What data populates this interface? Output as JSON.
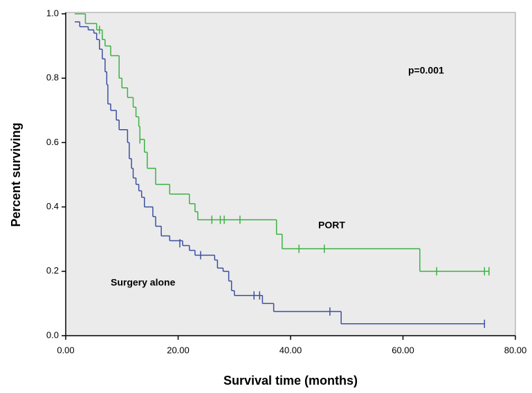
{
  "chart_data": {
    "type": "step",
    "x_label": "Survival time (months)",
    "y_label": "Percent surviving",
    "xlim": [
      0,
      80
    ],
    "ylim": [
      0,
      1
    ],
    "xticks": [
      {
        "value": 0,
        "label": "0.00"
      },
      {
        "value": 20,
        "label": "20.00"
      },
      {
        "value": 40,
        "label": "40.00"
      },
      {
        "value": 60,
        "label": "60.00"
      },
      {
        "value": 80,
        "label": "80.00"
      }
    ],
    "yticks": [
      {
        "value": 0,
        "label": "0.0"
      },
      {
        "value": 0.2,
        "label": "0.2"
      },
      {
        "value": 0.4,
        "label": "0.4"
      },
      {
        "value": 0.6,
        "label": "0.6"
      },
      {
        "value": 0.8,
        "label": "0.8"
      },
      {
        "value": 1,
        "label": "1.0"
      }
    ],
    "annotations": [
      "p=0.001",
      "PORT",
      "Surgery alone"
    ],
    "series": [
      {
        "name": "PORT",
        "color": "#3cb043",
        "x": [
          1.6,
          3.5,
          5.5,
          6.5,
          7,
          8,
          9.5,
          10,
          11,
          12,
          12.5,
          13,
          13.2,
          14,
          14.5,
          16,
          18.5,
          22,
          23,
          23.5,
          37.5,
          38.5,
          63
        ],
        "values": [
          1,
          0.97,
          0.95,
          0.92,
          0.9,
          0.87,
          0.8,
          0.77,
          0.74,
          0.71,
          0.68,
          0.65,
          0.61,
          0.57,
          0.52,
          0.47,
          0.44,
          0.41,
          0.385,
          0.36,
          0.315,
          0.27,
          0.2
        ],
        "censored_x": [
          6,
          13.2,
          26,
          27.5,
          28.2,
          31,
          41.5,
          46,
          66,
          74.5,
          75.3
        ],
        "censored_y": [
          0.95,
          0.61,
          0.36,
          0.36,
          0.36,
          0.36,
          0.27,
          0.27,
          0.2,
          0.2,
          0.2
        ]
      },
      {
        "name": "Surgery alone",
        "color": "#3a4fa0",
        "x": [
          1.6,
          2.5,
          4,
          5,
          5.5,
          6,
          6.5,
          7,
          7.3,
          7.5,
          8,
          9,
          9.5,
          11,
          11.3,
          11.7,
          12,
          12.5,
          13,
          13.5,
          14,
          15.5,
          16,
          17,
          18.5,
          20.8,
          22,
          23,
          26.5,
          27,
          28,
          29,
          29.5,
          30,
          35,
          37,
          49
        ],
        "values": [
          0.975,
          0.96,
          0.95,
          0.94,
          0.92,
          0.89,
          0.86,
          0.82,
          0.78,
          0.72,
          0.7,
          0.67,
          0.64,
          0.6,
          0.55,
          0.52,
          0.49,
          0.47,
          0.45,
          0.43,
          0.4,
          0.37,
          0.34,
          0.31,
          0.295,
          0.28,
          0.265,
          0.25,
          0.235,
          0.21,
          0.2,
          0.17,
          0.14,
          0.125,
          0.1,
          0.075,
          0.037
        ],
        "censored_x": [
          20.3,
          24,
          33.5,
          34.5,
          47,
          74.5
        ],
        "censored_y": [
          0.287,
          0.25,
          0.125,
          0.125,
          0.075,
          0.037
        ]
      }
    ]
  }
}
